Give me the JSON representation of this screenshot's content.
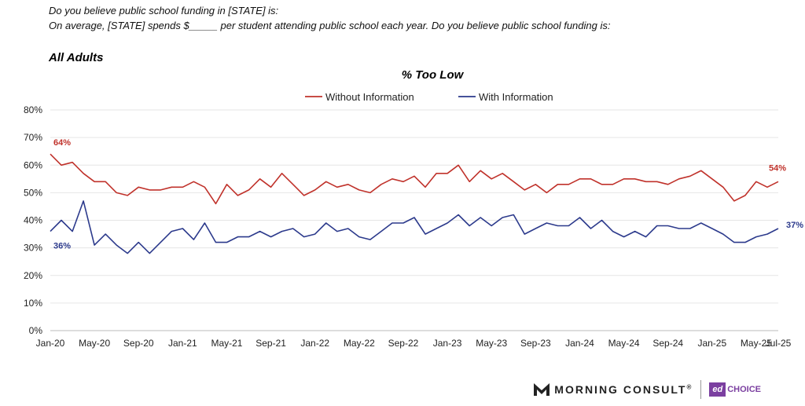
{
  "header": {
    "q1": "Do you believe public school funding in [STATE] is:",
    "q2": "On average, [STATE] spends $_____ per student attending public school each year. Do you believe public school funding is:",
    "subgroup": "All Adults"
  },
  "footer": {
    "brand1": "MORNING CONSULT",
    "brand1_mark": "®",
    "brand2_mark": "ed",
    "brand2": "CHOICE"
  },
  "chart_data": {
    "type": "line",
    "title": "% Too Low",
    "xlabel": "",
    "ylabel": "",
    "ylim": [
      0,
      80
    ],
    "y_ticks": [
      "0%",
      "10%",
      "20%",
      "30%",
      "40%",
      "50%",
      "60%",
      "70%",
      "80%"
    ],
    "x_tick_labels": [
      "Jan-20",
      "May-20",
      "Sep-20",
      "Jan-21",
      "May-21",
      "Sep-21",
      "Jan-22",
      "May-22",
      "Sep-22",
      "Jan-23",
      "May-23",
      "Sep-23",
      "Jan-24",
      "May-24",
      "Sep-24",
      "Jan-25",
      "May-25",
      "Jul-25"
    ],
    "x_period": "monthly Jan-20 to Jun-25",
    "legend_position": "top-center",
    "series": [
      {
        "name": "Without Information",
        "color": "#c0322b",
        "values": [
          64,
          60,
          61,
          57,
          54,
          54,
          50,
          49,
          52,
          51,
          51,
          52,
          52,
          54,
          52,
          46,
          53,
          49,
          51,
          55,
          52,
          57,
          53,
          49,
          51,
          54,
          52,
          53,
          51,
          50,
          53,
          55,
          54,
          56,
          52,
          57,
          57,
          60,
          54,
          58,
          55,
          57,
          54,
          51,
          53,
          50,
          53,
          53,
          55,
          55,
          53,
          53,
          55,
          55,
          54,
          54,
          53,
          55,
          56,
          58,
          55,
          52,
          47,
          49,
          54,
          52,
          54
        ],
        "start_label": "64%",
        "end_label": "54%"
      },
      {
        "name": "With Information",
        "color": "#2c3a8c",
        "values": [
          36,
          40,
          36,
          47,
          31,
          35,
          31,
          28,
          32,
          28,
          32,
          36,
          37,
          33,
          39,
          32,
          32,
          34,
          34,
          36,
          34,
          36,
          37,
          34,
          35,
          39,
          36,
          37,
          34,
          33,
          36,
          39,
          39,
          41,
          35,
          37,
          39,
          42,
          38,
          41,
          38,
          41,
          42,
          35,
          37,
          39,
          38,
          38,
          41,
          37,
          40,
          36,
          34,
          36,
          34,
          38,
          38,
          37,
          37,
          39,
          37,
          35,
          32,
          32,
          34,
          35,
          37
        ],
        "start_label": "36%",
        "end_label": "37%"
      }
    ]
  }
}
